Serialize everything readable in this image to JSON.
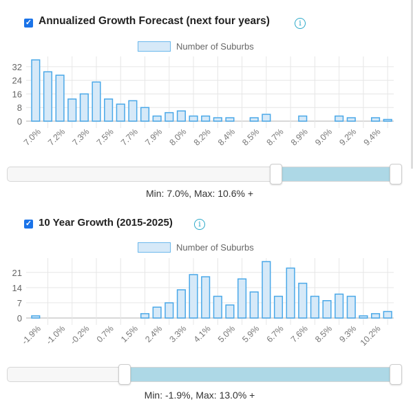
{
  "sections": [
    {
      "title": "Annualized Growth Forecast (next four years)",
      "checked": true,
      "legend": "Number of Suburbs",
      "slider": {
        "label": "Min: 7.0%, Max: 10.6% +",
        "min_fraction": 0.69,
        "max_fraction": 1.0
      }
    },
    {
      "title": "10 Year Growth (2015-2025)",
      "checked": true,
      "legend": "Number of Suburbs",
      "slider": {
        "label": "Min: -1.9%, Max: 13.0% +",
        "min_fraction": 0.3,
        "max_fraction": 1.0
      }
    }
  ],
  "icons": {
    "checkbox": "checkmark-icon",
    "info": "info-icon"
  },
  "colors": {
    "bar_fill": "#d6e9f8",
    "bar_stroke": "#4aa8e8",
    "slider_fill": "#add8e6",
    "checkbox": "#1a73e8"
  },
  "chart_data": [
    {
      "type": "bar",
      "series": [
        {
          "name": "Number of Suburbs",
          "values": [
            36,
            29,
            27,
            13,
            16,
            23,
            13,
            10,
            12,
            8,
            3,
            5,
            6,
            3,
            3,
            2,
            2,
            0,
            2,
            4,
            0,
            0,
            3,
            0,
            0,
            3,
            2,
            0,
            2,
            1
          ]
        }
      ],
      "tick_labels": [
        "7.0%",
        "7.2%",
        "7.3%",
        "7.5%",
        "7.7%",
        "7.9%",
        "8.0%",
        "8.2%",
        "8.4%",
        "8.5%",
        "8.7%",
        "8.9%",
        "9.0%",
        "9.2%",
        "9.4%"
      ],
      "yticks": [
        0,
        8,
        16,
        24,
        32
      ],
      "ylim": [
        0,
        36
      ],
      "grid": true,
      "legend": "top-center"
    },
    {
      "type": "bar",
      "series": [
        {
          "name": "Number of Suburbs",
          "values": [
            1,
            0,
            0,
            0,
            0,
            0,
            0,
            0,
            0,
            2,
            5,
            7,
            13,
            20,
            19,
            10,
            6,
            18,
            12,
            26,
            10,
            23,
            16,
            10,
            8,
            11,
            10,
            1,
            2,
            3
          ]
        }
      ],
      "tick_labels": [
        "-1.9%",
        "-1.0%",
        "-0.2%",
        "0.7%",
        "1.5%",
        "2.4%",
        "3.3%",
        "4.1%",
        "5.0%",
        "5.9%",
        "6.7%",
        "7.6%",
        "8.5%",
        "9.3%",
        "10.2%"
      ],
      "yticks": [
        0,
        7,
        14,
        21
      ],
      "ylim": [
        0,
        26
      ],
      "grid": true,
      "legend": "top-center"
    }
  ]
}
